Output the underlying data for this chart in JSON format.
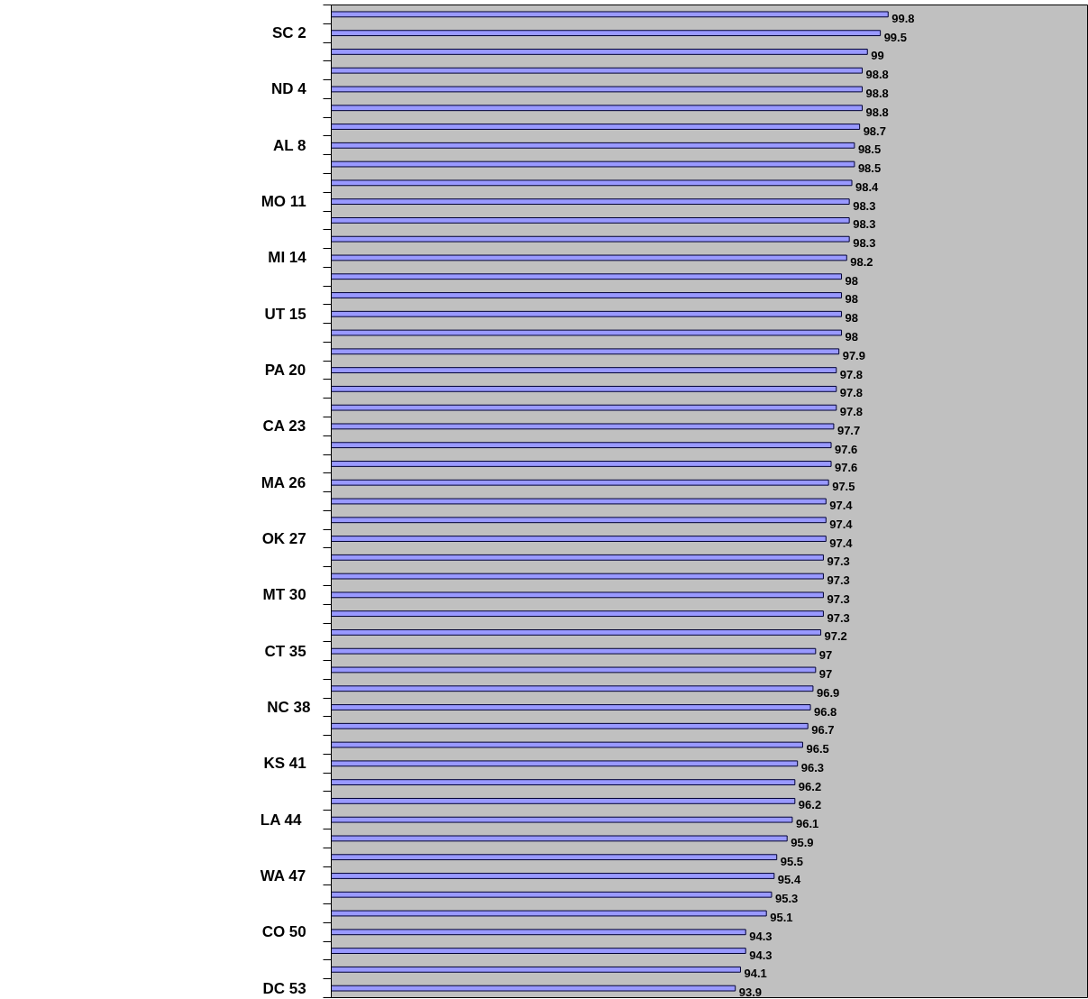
{
  "chart_data": {
    "type": "bar",
    "orientation": "horizontal",
    "categories": [
      null,
      "SC  2",
      null,
      null,
      "ND  4",
      null,
      null,
      "AL  8",
      null,
      null,
      "MO  11",
      null,
      null,
      "MI  14",
      null,
      null,
      "UT  15",
      null,
      null,
      "PA  20",
      null,
      null,
      "CA  23",
      null,
      null,
      "MA  26",
      null,
      null,
      "OK  27",
      null,
      null,
      "MT  30",
      null,
      null,
      "CT  35",
      null,
      null,
      "NC 38",
      null,
      null,
      "KS  41",
      null,
      null,
      "LA   44",
      null,
      null,
      "WA  47",
      null,
      null,
      "CO  50",
      null,
      null,
      "DC  53"
    ],
    "values": [
      99.8,
      99.5,
      99,
      98.8,
      98.8,
      98.8,
      98.7,
      98.5,
      98.5,
      98.4,
      98.3,
      98.3,
      98.3,
      98.2,
      98,
      98,
      98,
      98,
      97.9,
      97.8,
      97.8,
      97.8,
      97.7,
      97.6,
      97.6,
      97.5,
      97.4,
      97.4,
      97.4,
      97.3,
      97.3,
      97.3,
      97.3,
      97.2,
      97,
      97,
      96.9,
      96.8,
      96.7,
      96.5,
      96.3,
      96.2,
      96.2,
      96.1,
      95.9,
      95.5,
      95.4,
      95.3,
      95.1,
      94.3,
      94.3,
      94.1,
      93.9
    ],
    "color": "#9999ff",
    "xlim": [
      78.3,
      107.5
    ],
    "data_labels": true,
    "tick_labels": "y",
    "grid": false
  }
}
